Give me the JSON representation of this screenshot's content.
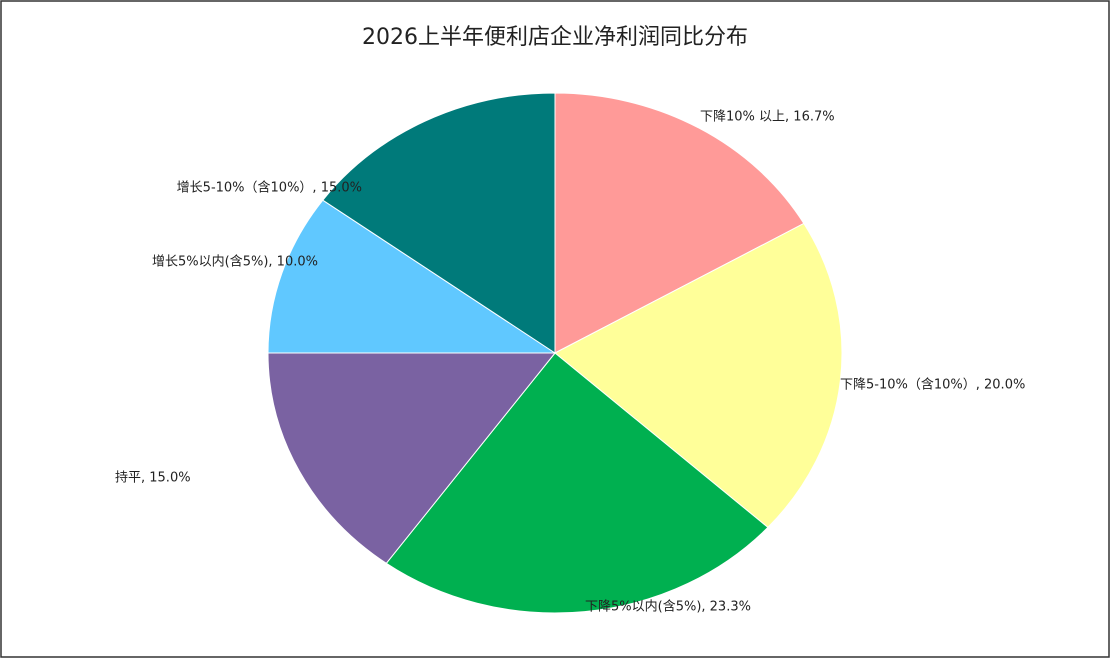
{
  "chart_data": {
    "type": "pie",
    "title": "2026上半年便利店企业净利润同比分布",
    "values": [
      16.7,
      20.0,
      23.3,
      15.0,
      10.0,
      15.0
    ],
    "value_labels": [
      "下降10% 以上, 16.7%",
      "下降5-10%（含10%）, 20.0%",
      "下降5%以内(含5%), 23.3%",
      "持平, 15.0%",
      "增长5%以内(含5%), 10.0%",
      "增长5-10%（含10%）, 15.0%"
    ],
    "colors": [
      "#ff9a98",
      "#ffff99",
      "#00b050",
      "#7a62a2",
      "#60c8ff",
      "#007a7a"
    ]
  }
}
